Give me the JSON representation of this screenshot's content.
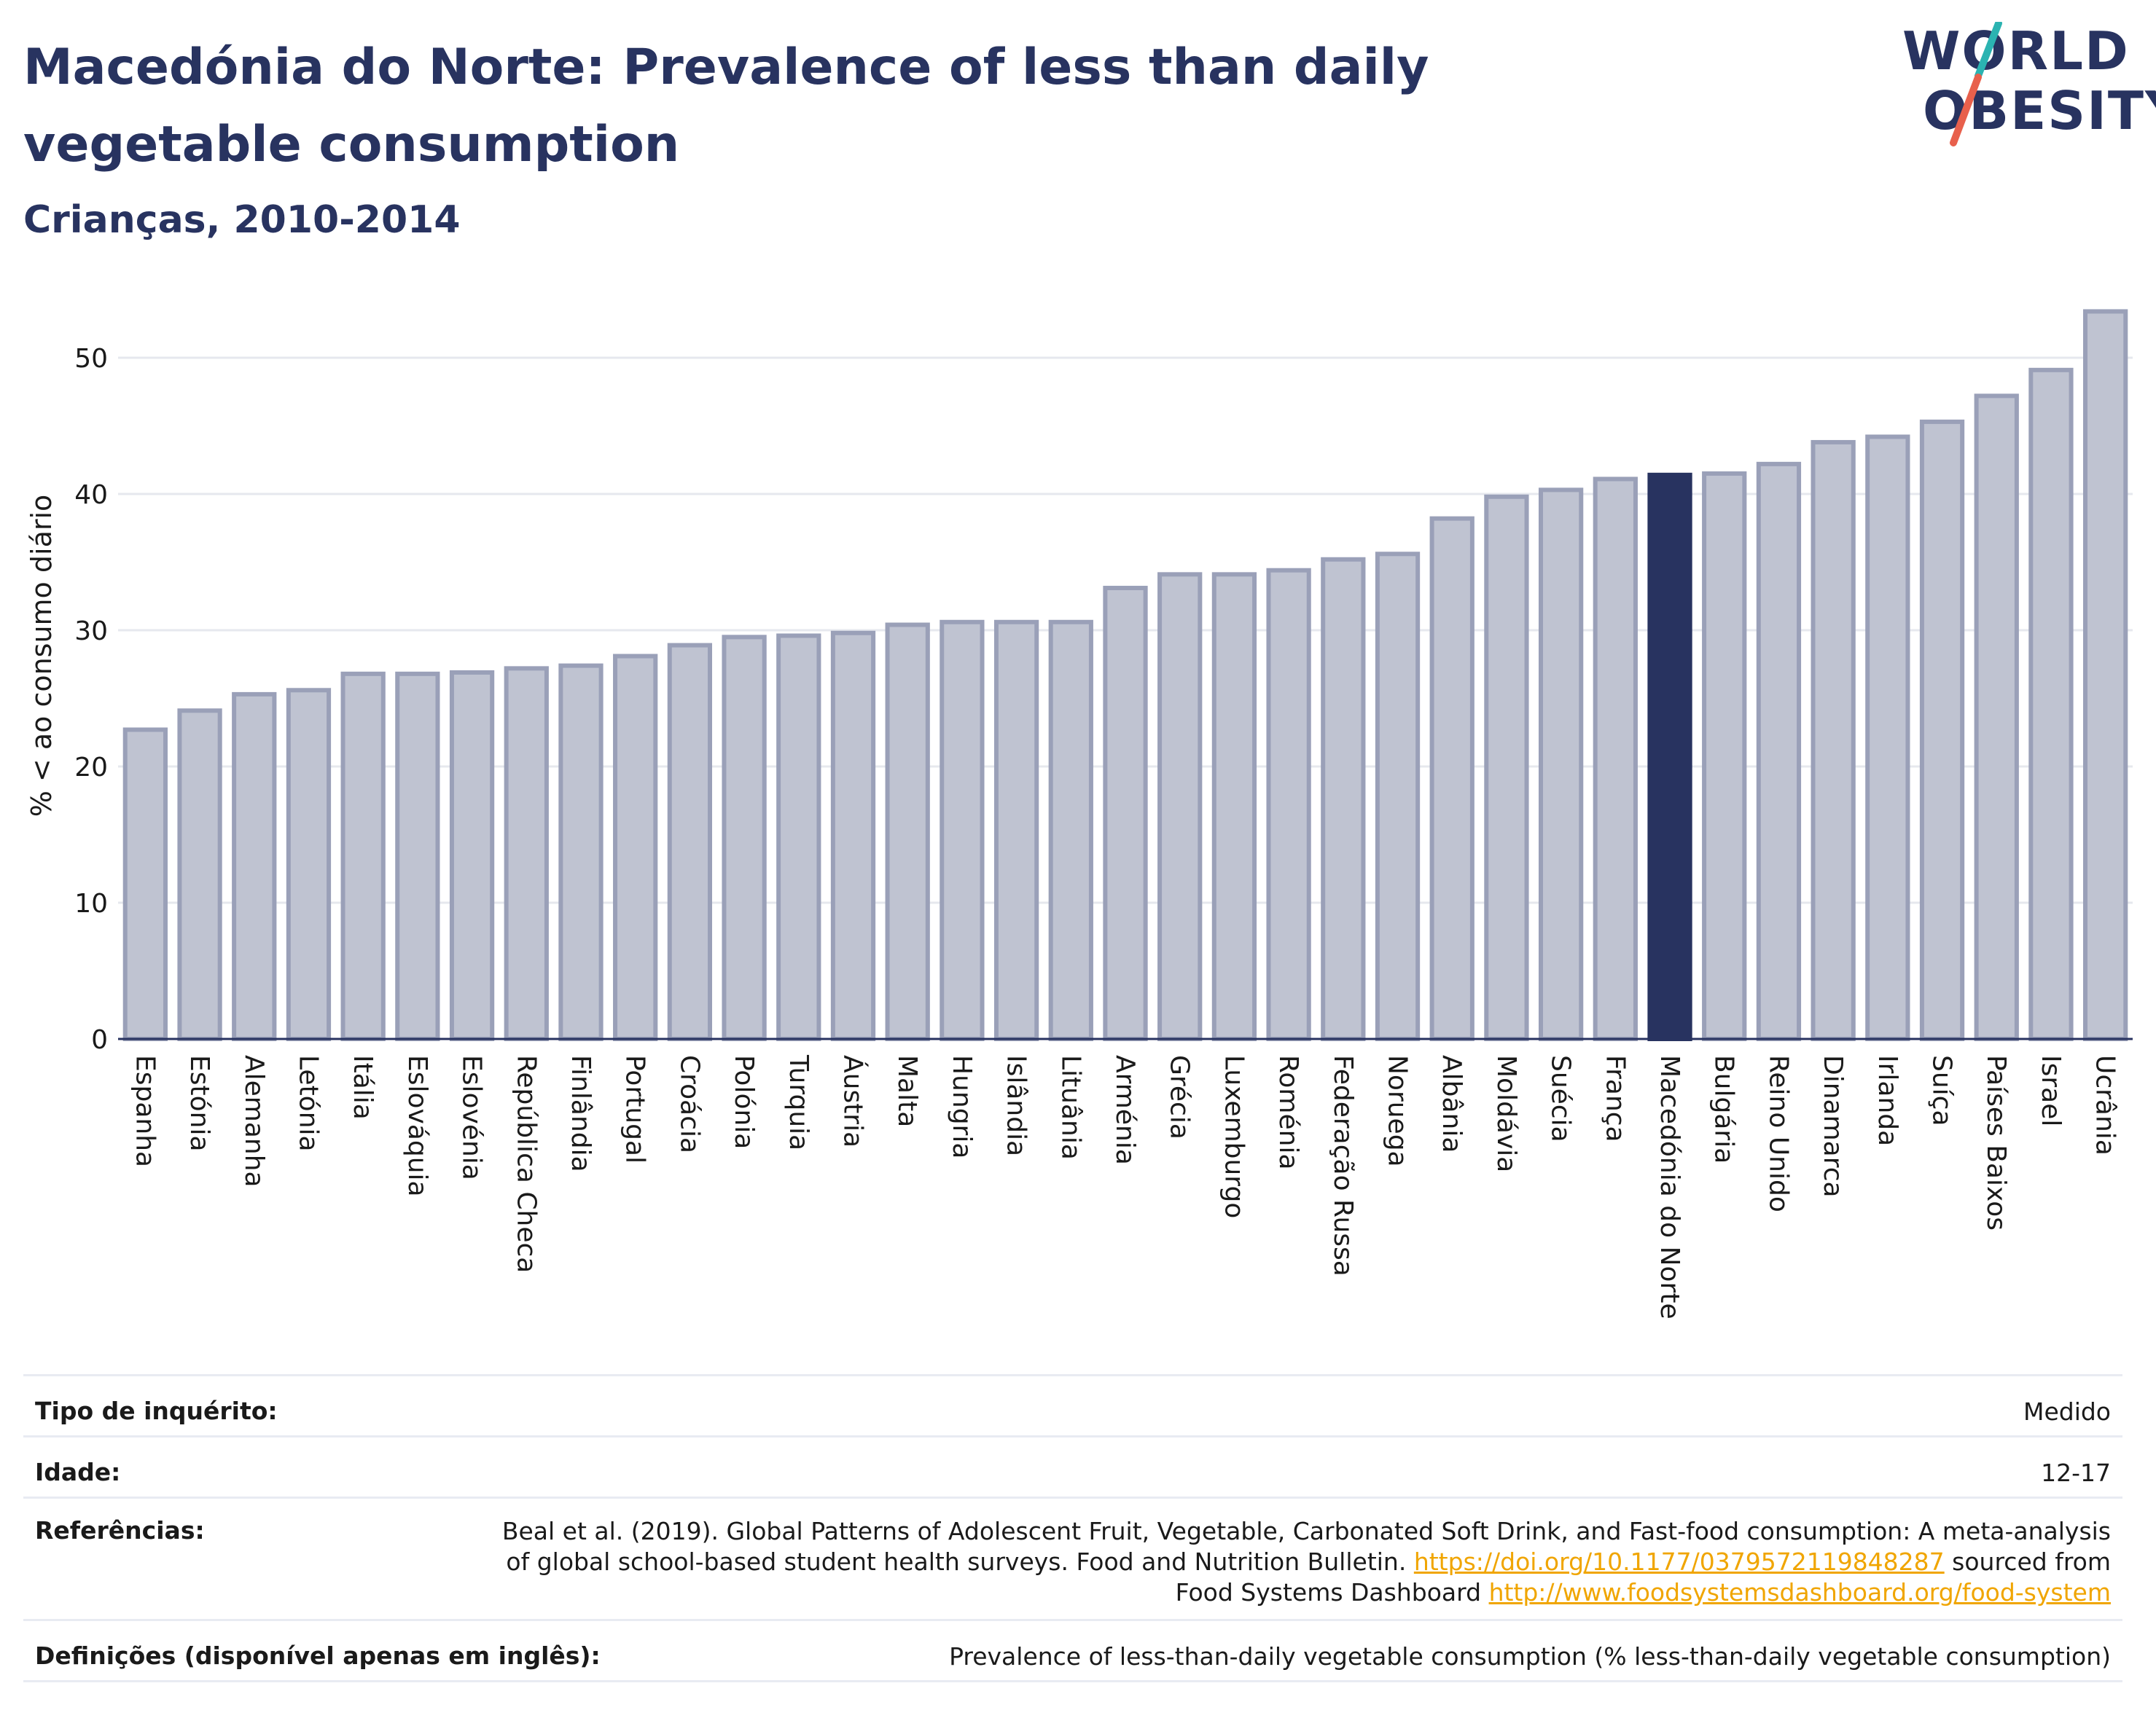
{
  "header": {
    "title": "Macedónia do Norte: Prevalence of less than daily vegetable consumption",
    "subtitle": "Crianças, 2010-2014"
  },
  "logo": {
    "line1": "WORLD",
    "line2": "OBESITY",
    "accent_colors": [
      "#2bb3b1",
      "#e8604c"
    ]
  },
  "colors": {
    "bar": "#bfc3d1",
    "bar_border": "#9aa0b8",
    "highlight": "#283360",
    "grid": "#e6e8ee",
    "text": "#283360"
  },
  "chart_data": {
    "type": "bar",
    "ylabel": "% < ao consumo diário",
    "ylim": [
      0,
      55
    ],
    "yticks": [
      0,
      10,
      20,
      30,
      40,
      50
    ],
    "grid": true,
    "highlight": "Macedónia do Norte",
    "categories": [
      "Espanha",
      "Estónia",
      "Alemanha",
      "Letónia",
      "Itália",
      "Eslováquia",
      "Eslovénia",
      "República Checa",
      "Finlândia",
      "Portugal",
      "Croácia",
      "Polónia",
      "Turquia",
      "Áustria",
      "Malta",
      "Hungria",
      "Islândia",
      "Lituânia",
      "Arménia",
      "Grécia",
      "Luxemburgo",
      "Roménia",
      "Federação Russa",
      "Noruega",
      "Albânia",
      "Moldávia",
      "Suécia",
      "França",
      "Macedónia do Norte",
      "Bulgária",
      "Reino Unido",
      "Dinamarca",
      "Irlanda",
      "Suíça",
      "Países Baixos",
      "Israel",
      "Ucrânia"
    ],
    "values": [
      22.7,
      24.1,
      25.3,
      25.6,
      26.8,
      26.8,
      26.9,
      27.2,
      27.4,
      28.1,
      28.9,
      29.5,
      29.6,
      29.8,
      30.4,
      30.6,
      30.6,
      30.6,
      33.1,
      34.1,
      34.1,
      34.4,
      35.2,
      35.6,
      38.2,
      39.8,
      40.3,
      41.1,
      41.4,
      41.5,
      42.2,
      43.8,
      44.2,
      45.3,
      47.2,
      49.1,
      53.4
    ]
  },
  "info": {
    "survey_label": "Tipo de inquérito:",
    "survey_value": "Medido",
    "age_label": "Idade:",
    "age_value": "12-17",
    "ref_label": "Referências:",
    "ref_text_1": "Beal et al. (2019). Global Patterns of Adolescent Fruit, Vegetable, Carbonated Soft Drink, and Fast-food consumption: A meta-analysis",
    "ref_text_2": "of global school-based student health surveys. Food and Nutrition Bulletin.",
    "ref_link_1": "https://doi.org/10.1177/0379572119848287",
    "ref_text_3": "sourced from",
    "ref_text_4": "Food Systems Dashboard",
    "ref_link_2": "http://www.foodsystemsdashboard.org/food-system",
    "def_label": "Definições (disponível apenas em inglês):",
    "def_value": "Prevalence of less-than-daily vegetable consumption (% less-than-daily vegetable consumption)"
  }
}
